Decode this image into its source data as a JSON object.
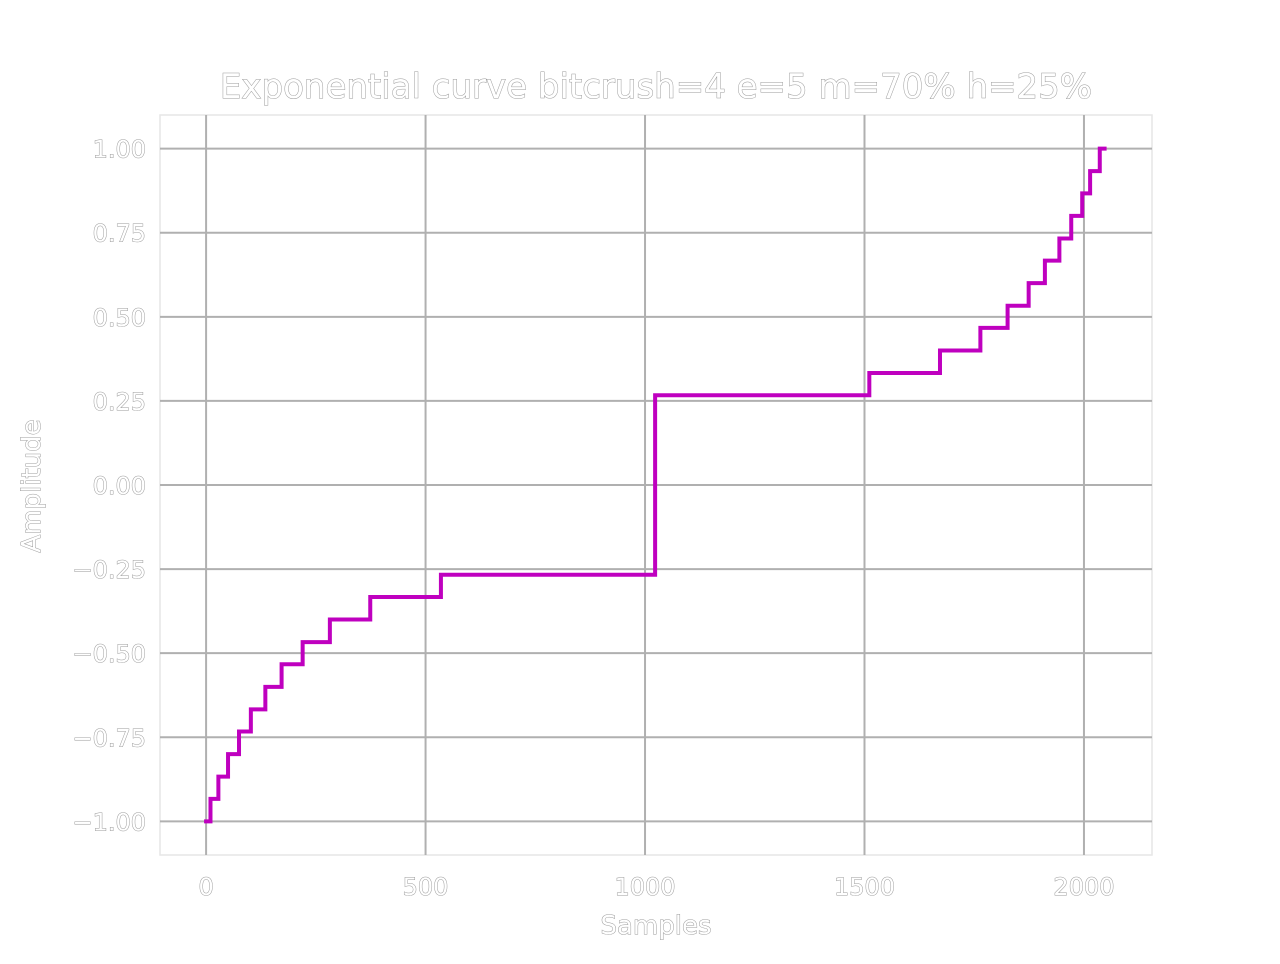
{
  "chart_data": {
    "type": "line",
    "title": "Exponential curve bitcrush=4 e=5 m=70% h=25%",
    "xlabel": "Samples",
    "ylabel": "Amplitude",
    "xlim": [
      -105,
      2155
    ],
    "ylim": [
      -1.1,
      1.1
    ],
    "x_ticks": [
      0,
      500,
      1000,
      1500,
      2000
    ],
    "x_tick_labels": [
      "0",
      "500",
      "1000",
      "1500",
      "2000"
    ],
    "y_ticks": [
      1.0,
      0.75,
      0.5,
      0.25,
      0.0,
      -0.25,
      -0.5,
      -0.75,
      -1.0
    ],
    "y_tick_labels": [
      "1.00",
      "0.75",
      "0.50",
      "0.25",
      "0.00",
      "−0.25",
      "−0.50",
      "−0.75",
      "−1.00"
    ],
    "grid": true,
    "series": [
      {
        "color": "#bf00bf",
        "step": "pre",
        "x": [
          0,
          10,
          28,
          50,
          75,
          102,
          135,
          172,
          220,
          282,
          374,
          535,
          1023,
          1511,
          1672,
          1764,
          1826,
          1874,
          1911,
          1944,
          1971,
          1996,
          2014,
          2036,
          2047
        ],
        "y": [
          -1.0,
          -0.933,
          -0.867,
          -0.8,
          -0.733,
          -0.667,
          -0.6,
          -0.533,
          -0.467,
          -0.4,
          -0.333,
          -0.267,
          0.267,
          0.333,
          0.4,
          0.467,
          0.533,
          0.6,
          0.667,
          0.733,
          0.8,
          0.867,
          0.933,
          1.0,
          1.0
        ]
      }
    ]
  }
}
